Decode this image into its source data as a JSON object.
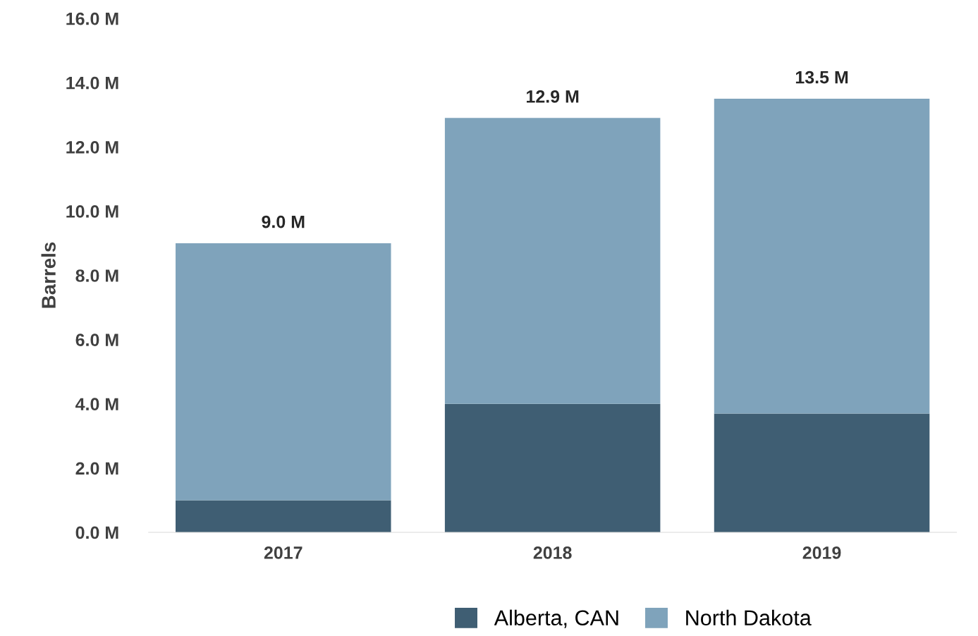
{
  "chart_data": {
    "type": "bar",
    "stacked": true,
    "ylabel": "Barrels",
    "categories": [
      "2017",
      "2018",
      "2019"
    ],
    "series": [
      {
        "name": "Alberta, CAN",
        "color": "#3f5e73",
        "values": [
          1.0,
          4.0,
          3.7
        ]
      },
      {
        "name": "North Dakota",
        "color": "#7fa3bb",
        "values": [
          8.0,
          8.9,
          9.8
        ]
      }
    ],
    "totals": [
      "9.0 M",
      "12.9 M",
      "13.5 M"
    ],
    "ylim": [
      0,
      16
    ],
    "yticks": [
      {
        "value": 0,
        "label": "0.0 M"
      },
      {
        "value": 2,
        "label": "2.0 M"
      },
      {
        "value": 4,
        "label": "4.0 M"
      },
      {
        "value": 6,
        "label": "6.0 M"
      },
      {
        "value": 8,
        "label": "8.0 M"
      },
      {
        "value": 10,
        "label": "10.0 M"
      },
      {
        "value": 12,
        "label": "12.0 M"
      },
      {
        "value": 14,
        "label": "14.0 M"
      },
      {
        "value": 16,
        "label": "16.0 M"
      }
    ],
    "grid": false,
    "legend": "bottom"
  }
}
